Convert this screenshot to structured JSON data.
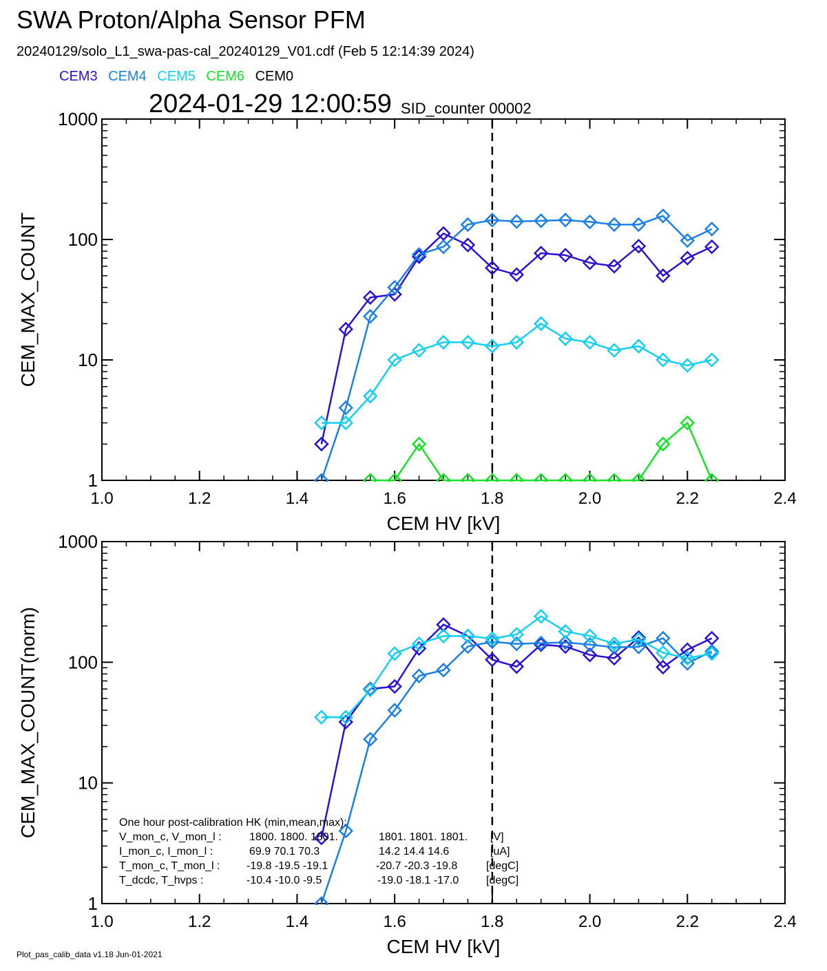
{
  "header": {
    "title": "SWA Proton/Alpha Sensor PFM",
    "subtitle": "20240129/solo_L1_swa-pas-cal_20240129_V01.cdf  (Feb  5 12:14:39 2024)",
    "timestamp": "2024-01-29 12:00:59",
    "sid_counter": "SID_counter 00002"
  },
  "legend": [
    {
      "label": "CEM3",
      "color": "#2a12d4"
    },
    {
      "label": "CEM4",
      "color": "#1c7fe6"
    },
    {
      "label": "CEM5",
      "color": "#16cdf2"
    },
    {
      "label": "CEM6",
      "color": "#18e02a"
    },
    {
      "label": "CEM0",
      "color": "#000000"
    }
  ],
  "footer": "Plot_pas_calib_data v1.18 Jun-01-2021",
  "hk_text": {
    "heading": "One hour post-calibration HK (min,mean,max):",
    "rows": [
      {
        "name": "V_mon_c, V_mon_l :",
        "c": "1800.  1800.  1801.",
        "l": "1801.  1801.  1801.",
        "unit": "[V]"
      },
      {
        "name": "I_mon_c, I_mon_l :",
        "c": "69.9   70.1   70.3",
        "l": "14.2   14.4   14.6",
        "unit": "[uA]"
      },
      {
        "name": "T_mon_c, T_mon_l :",
        "c": "-19.8  -19.5  -19.1",
        "l": "-20.7  -20.3  -19.8",
        "unit": "[degC]"
      },
      {
        "name": "T_dcdc,    T_hvps :",
        "c": "-10.4  -10.0   -9.5",
        "l": "-19.0  -18.1  -17.0",
        "unit": "[degC]"
      }
    ]
  },
  "chart_data": [
    {
      "type": "line",
      "xlabel": "CEM HV [kV]",
      "ylabel": "CEM_MAX_COUNT",
      "xlim": [
        1.0,
        2.4
      ],
      "ylim": [
        1,
        1000
      ],
      "yscale": "log",
      "xticks": [
        "1.0",
        "1.2",
        "1.4",
        "1.6",
        "1.8",
        "2.0",
        "2.2",
        "2.4"
      ],
      "yticks": [
        "1",
        "10",
        "100",
        "1000"
      ],
      "vline": 1.8,
      "marker": "diamond",
      "series": [
        {
          "name": "CEM3",
          "color": "#2a12d4",
          "x": [
            1.45,
            1.5,
            1.55,
            1.6,
            1.65,
            1.7,
            1.75,
            1.8,
            1.85,
            1.9,
            1.95,
            2.0,
            2.05,
            2.1,
            2.15,
            2.2,
            2.25
          ],
          "y": [
            2,
            18,
            33,
            35,
            72,
            112,
            90,
            58,
            51,
            77,
            74,
            64,
            60,
            88,
            50,
            70,
            87
          ]
        },
        {
          "name": "CEM4",
          "color": "#1c7fe6",
          "x": [
            1.45,
            1.5,
            1.55,
            1.6,
            1.65,
            1.7,
            1.75,
            1.8,
            1.85,
            1.9,
            1.95,
            2.0,
            2.05,
            2.1,
            2.15,
            2.2,
            2.25
          ],
          "y": [
            1,
            4,
            23,
            40,
            75,
            87,
            133,
            145,
            141,
            143,
            145,
            140,
            133,
            133,
            157,
            98,
            122
          ]
        },
        {
          "name": "CEM5",
          "color": "#16cdf2",
          "x": [
            1.45,
            1.5,
            1.55,
            1.6,
            1.65,
            1.7,
            1.75,
            1.8,
            1.85,
            1.9,
            1.95,
            2.0,
            2.05,
            2.1,
            2.15,
            2.2,
            2.25
          ],
          "y": [
            3,
            3,
            5,
            10,
            12,
            14,
            14,
            13,
            14,
            20,
            15,
            14,
            12,
            13,
            10,
            9,
            10
          ]
        },
        {
          "name": "CEM6",
          "color": "#18e02a",
          "x": [
            1.55,
            1.6,
            1.65,
            1.7,
            1.75,
            1.8,
            1.85,
            1.9,
            1.95,
            2.0,
            2.05,
            2.1,
            2.15,
            2.2,
            2.25
          ],
          "y": [
            1,
            1,
            2,
            1,
            1,
            1,
            1,
            1,
            1,
            1,
            1,
            1,
            2,
            3,
            1
          ]
        }
      ]
    },
    {
      "type": "line",
      "xlabel": "CEM HV [kV]",
      "ylabel": "CEM_MAX_COUNT(norm)",
      "xlim": [
        1.0,
        2.4
      ],
      "ylim": [
        1,
        1000
      ],
      "yscale": "log",
      "xticks": [
        "1.0",
        "1.2",
        "1.4",
        "1.6",
        "1.8",
        "2.0",
        "2.2",
        "2.4"
      ],
      "yticks": [
        "1",
        "10",
        "100",
        "1000"
      ],
      "vline": 1.8,
      "marker": "diamond",
      "series": [
        {
          "name": "CEM3",
          "color": "#2a12d4",
          "x": [
            1.45,
            1.5,
            1.55,
            1.6,
            1.65,
            1.7,
            1.75,
            1.8,
            1.85,
            1.9,
            1.95,
            2.0,
            2.05,
            2.1,
            2.15,
            2.2,
            2.25
          ],
          "y": [
            3.5,
            32,
            60,
            63,
            130,
            205,
            165,
            105,
            92,
            140,
            135,
            115,
            108,
            160,
            91,
            127,
            158
          ]
        },
        {
          "name": "CEM4",
          "color": "#1c7fe6",
          "x": [
            1.45,
            1.5,
            1.55,
            1.6,
            1.65,
            1.7,
            1.75,
            1.8,
            1.85,
            1.9,
            1.95,
            2.0,
            2.05,
            2.1,
            2.15,
            2.2,
            2.25
          ],
          "y": [
            1,
            4,
            23,
            40,
            77,
            86,
            135,
            148,
            142,
            144,
            146,
            140,
            133,
            134,
            158,
            98,
            123
          ]
        },
        {
          "name": "CEM5",
          "color": "#16cdf2",
          "x": [
            1.45,
            1.5,
            1.55,
            1.6,
            1.65,
            1.7,
            1.75,
            1.8,
            1.85,
            1.9,
            1.95,
            2.0,
            2.05,
            2.1,
            2.15,
            2.2,
            2.25
          ],
          "y": [
            35,
            35,
            59,
            118,
            142,
            165,
            165,
            157,
            170,
            240,
            180,
            165,
            142,
            155,
            120,
            108,
            118
          ]
        }
      ]
    }
  ]
}
